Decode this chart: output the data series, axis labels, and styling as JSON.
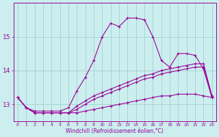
{
  "xlabel": "Windchill (Refroidissement éolien,°C)",
  "background_color": "#cceeee",
  "line_color": "#990099",
  "hours": [
    0,
    1,
    2,
    3,
    4,
    5,
    6,
    7,
    8,
    9,
    10,
    11,
    12,
    13,
    14,
    15,
    16,
    17,
    18,
    19,
    20,
    21,
    22,
    23
  ],
  "series1": [
    13.2,
    12.9,
    12.8,
    12.8,
    12.8,
    12.8,
    12.9,
    13.4,
    13.8,
    14.3,
    15.0,
    15.4,
    15.3,
    15.55,
    15.55,
    15.5,
    15.0,
    14.3,
    14.1,
    14.5,
    14.5,
    14.45,
    14.05,
    13.2
  ],
  "series2": [
    13.2,
    12.9,
    12.75,
    12.75,
    12.75,
    12.75,
    12.75,
    12.95,
    13.1,
    13.25,
    13.35,
    13.45,
    13.55,
    13.65,
    13.75,
    13.85,
    13.9,
    14.0,
    14.05,
    14.1,
    14.15,
    14.2,
    14.2,
    13.25
  ],
  "series3": [
    13.2,
    12.9,
    12.75,
    12.75,
    12.75,
    12.75,
    12.75,
    12.85,
    13.0,
    13.15,
    13.25,
    13.35,
    13.45,
    13.55,
    13.65,
    13.75,
    13.8,
    13.9,
    13.95,
    14.0,
    14.05,
    14.1,
    14.1,
    13.2
  ],
  "series4": [
    13.2,
    12.9,
    12.75,
    12.75,
    12.75,
    12.75,
    12.75,
    12.75,
    12.8,
    12.85,
    12.9,
    12.95,
    13.0,
    13.05,
    13.1,
    13.15,
    13.2,
    13.25,
    13.25,
    13.3,
    13.3,
    13.3,
    13.25,
    13.2
  ],
  "ylim": [
    12.5,
    16.0
  ],
  "yticks": [
    13,
    14,
    15
  ],
  "xtick_fontsize": 4.5,
  "ytick_fontsize": 6.5,
  "xlabel_fontsize": 5.5,
  "grid_color": "#99cccc",
  "marker": "+"
}
